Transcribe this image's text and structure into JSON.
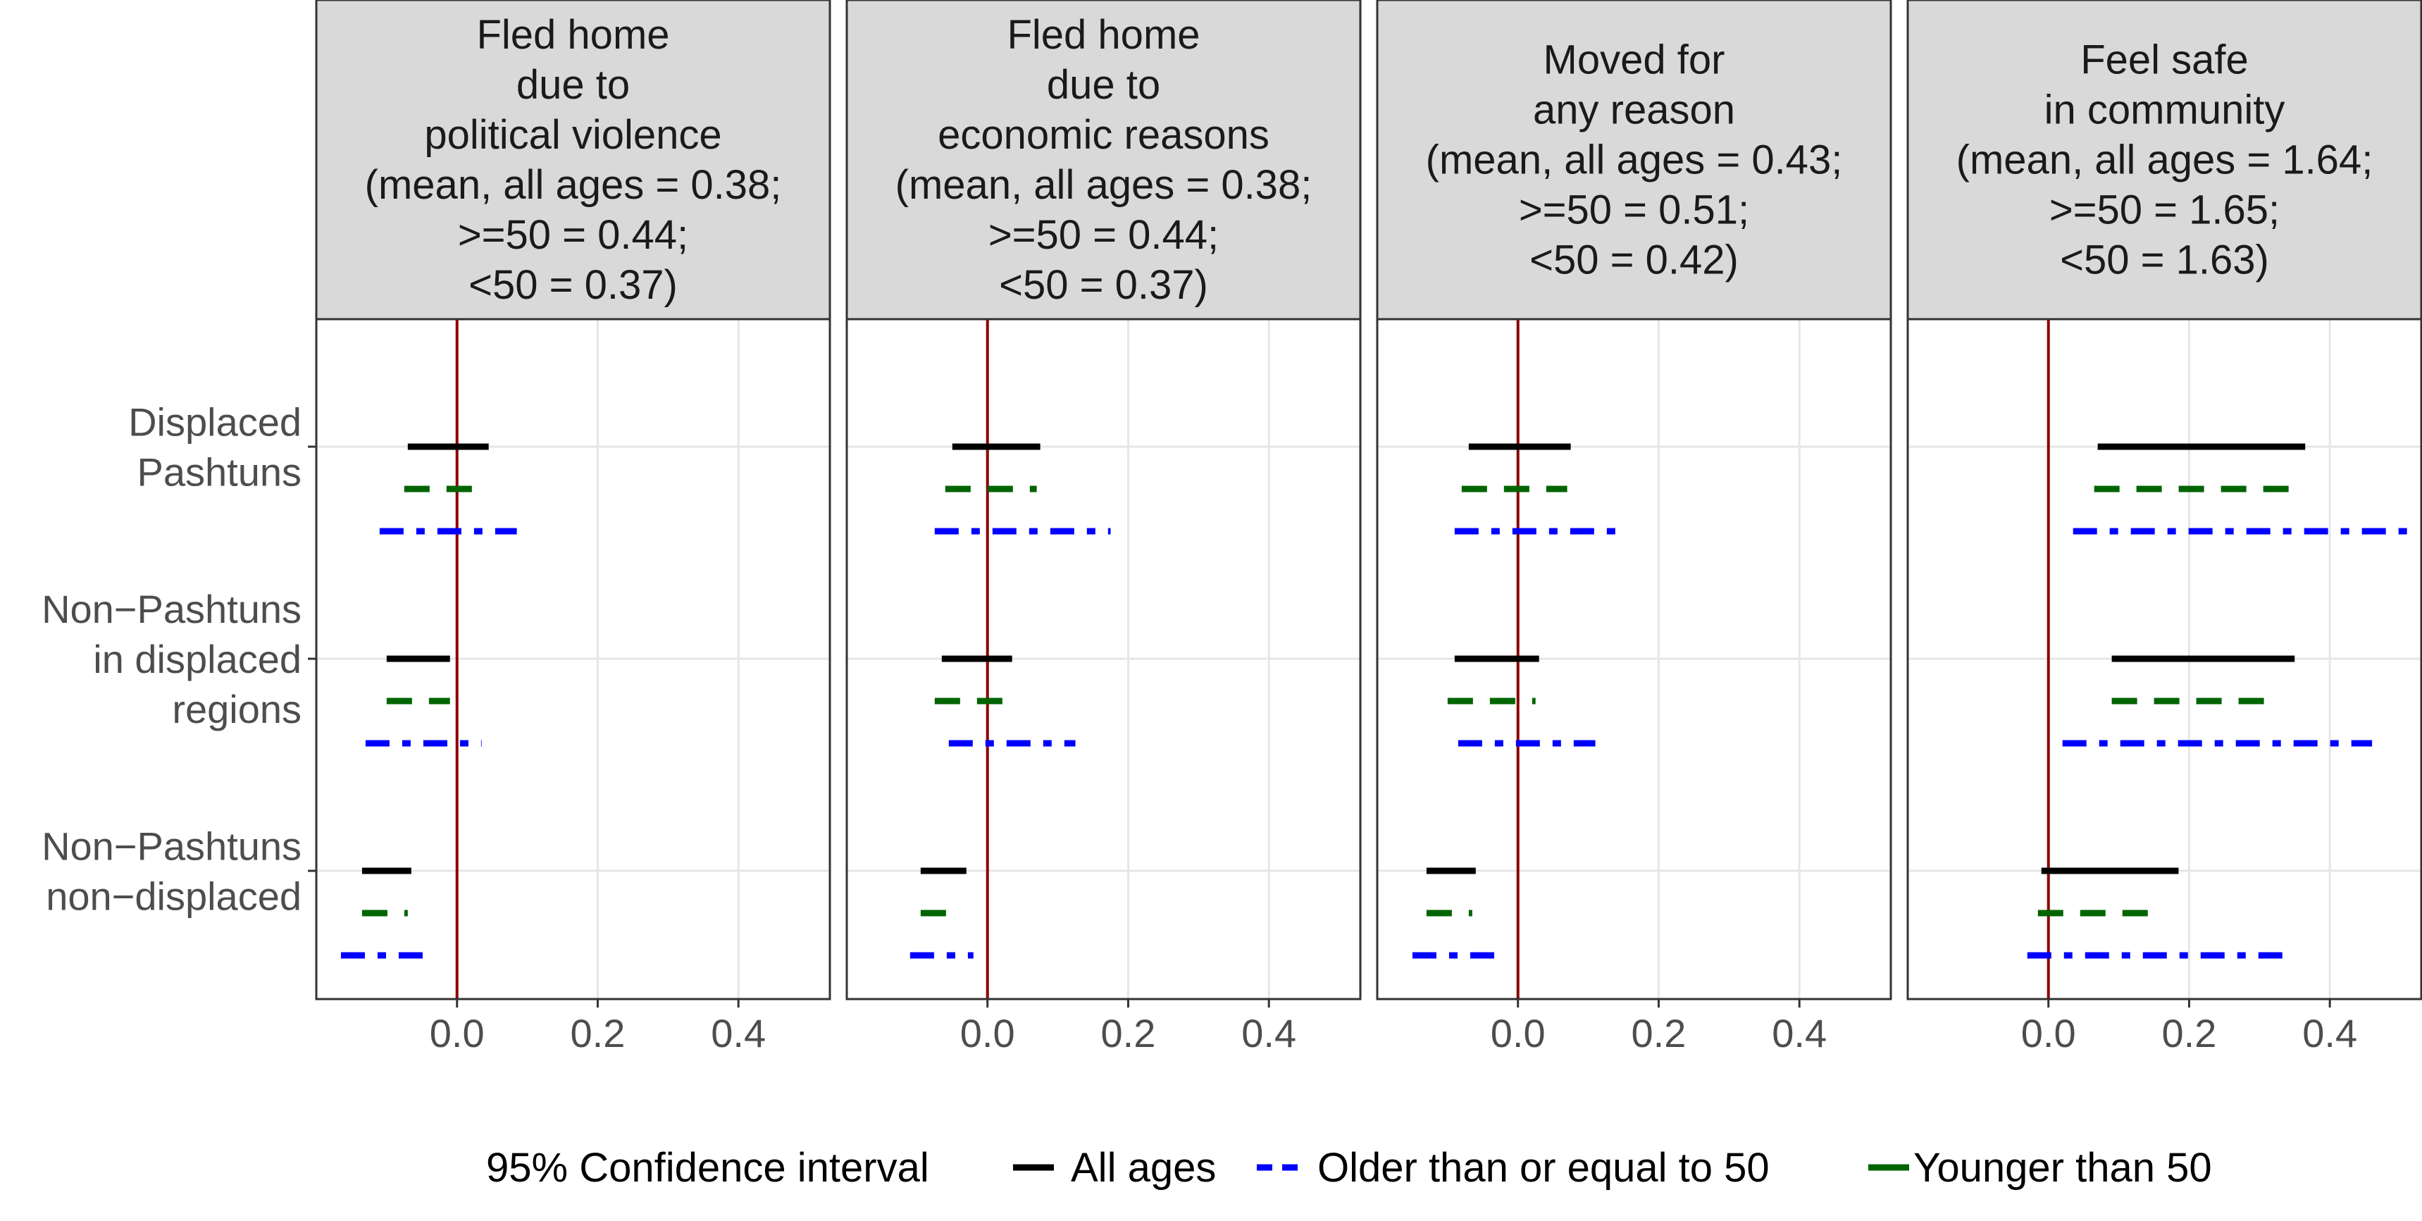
{
  "chart_data": {
    "type": "interval",
    "legend": {
      "title": "95% Confidence interval",
      "position": "bottom",
      "entries": [
        {
          "key": "all",
          "label": "All ages",
          "color": "#000000",
          "dash": "solid"
        },
        {
          "key": "older",
          "label": "Older than or equal to 50",
          "color": "#0000ff",
          "dash": "dashdot"
        },
        {
          "key": "younger",
          "label": "Younger than 50",
          "color": "#006400",
          "dash": "dashed"
        }
      ]
    },
    "rows": [
      {
        "label_lines": [
          "Displaced",
          "Pashtuns"
        ]
      },
      {
        "label_lines": [
          "Non−Pashtuns",
          "in displaced",
          "regions"
        ]
      },
      {
        "label_lines": [
          "Non−Pashtuns",
          "non−displaced"
        ]
      }
    ],
    "x_ticks": [
      "0.0",
      "0.2",
      "0.4"
    ],
    "x_tick_values": [
      0.0,
      0.2,
      0.4
    ],
    "xlim": [
      -0.2,
      0.53
    ],
    "reference_line": 0,
    "reference_color": "#8b0000",
    "panels": [
      {
        "title_lines": [
          "Fled home",
          "due to",
          "political violence",
          "(mean, all ages = 0.38;",
          ">=50 = 0.44;",
          "<50 = 0.37)"
        ],
        "intervals": [
          {
            "row": 0,
            "series": "all",
            "low": -0.07,
            "high": 0.045
          },
          {
            "row": 0,
            "series": "younger",
            "low": -0.075,
            "high": 0.045
          },
          {
            "row": 0,
            "series": "older",
            "low": -0.11,
            "high": 0.085
          },
          {
            "row": 1,
            "series": "all",
            "low": -0.1,
            "high": -0.01
          },
          {
            "row": 1,
            "series": "younger",
            "low": -0.1,
            "high": -0.01
          },
          {
            "row": 1,
            "series": "older",
            "low": -0.13,
            "high": 0.035
          },
          {
            "row": 2,
            "series": "all",
            "low": -0.135,
            "high": -0.065
          },
          {
            "row": 2,
            "series": "younger",
            "low": -0.135,
            "high": -0.07
          },
          {
            "row": 2,
            "series": "older",
            "low": -0.165,
            "high": -0.04
          }
        ]
      },
      {
        "title_lines": [
          "Fled home",
          "due to",
          "economic reasons",
          "(mean, all ages = 0.38;",
          ">=50 = 0.44;",
          "<50 = 0.37)"
        ],
        "intervals": [
          {
            "row": 0,
            "series": "all",
            "low": -0.05,
            "high": 0.075
          },
          {
            "row": 0,
            "series": "younger",
            "low": -0.06,
            "high": 0.07
          },
          {
            "row": 0,
            "series": "older",
            "low": -0.075,
            "high": 0.175
          },
          {
            "row": 1,
            "series": "all",
            "low": -0.065,
            "high": 0.035
          },
          {
            "row": 1,
            "series": "younger",
            "low": -0.075,
            "high": 0.03
          },
          {
            "row": 1,
            "series": "older",
            "low": -0.055,
            "high": 0.125
          },
          {
            "row": 2,
            "series": "all",
            "low": -0.095,
            "high": -0.03
          },
          {
            "row": 2,
            "series": "younger",
            "low": -0.095,
            "high": -0.035
          },
          {
            "row": 2,
            "series": "older",
            "low": -0.11,
            "high": -0.02
          }
        ]
      },
      {
        "title_lines": [
          "Moved for",
          "any reason",
          "(mean, all ages = 0.43;",
          ">=50 = 0.51;",
          "<50 = 0.42)"
        ],
        "intervals": [
          {
            "row": 0,
            "series": "all",
            "low": -0.07,
            "high": 0.075
          },
          {
            "row": 0,
            "series": "younger",
            "low": -0.08,
            "high": 0.07
          },
          {
            "row": 0,
            "series": "older",
            "low": -0.09,
            "high": 0.14
          },
          {
            "row": 1,
            "series": "all",
            "low": -0.09,
            "high": 0.03
          },
          {
            "row": 1,
            "series": "younger",
            "low": -0.1,
            "high": 0.025
          },
          {
            "row": 1,
            "series": "older",
            "low": -0.085,
            "high": 0.11
          },
          {
            "row": 2,
            "series": "all",
            "low": -0.13,
            "high": -0.06
          },
          {
            "row": 2,
            "series": "younger",
            "low": -0.13,
            "high": -0.065
          },
          {
            "row": 2,
            "series": "older",
            "low": -0.15,
            "high": -0.025
          }
        ]
      },
      {
        "title_lines": [
          "Feel safe",
          "in community",
          "(mean, all ages = 1.64;",
          ">=50 = 1.65;",
          "<50 = 1.63)"
        ],
        "intervals": [
          {
            "row": 0,
            "series": "all",
            "low": 0.07,
            "high": 0.365
          },
          {
            "row": 0,
            "series": "younger",
            "low": 0.065,
            "high": 0.36
          },
          {
            "row": 0,
            "series": "older",
            "low": 0.035,
            "high": 0.51
          },
          {
            "row": 1,
            "series": "all",
            "low": 0.09,
            "high": 0.35
          },
          {
            "row": 1,
            "series": "younger",
            "low": 0.09,
            "high": 0.33
          },
          {
            "row": 1,
            "series": "older",
            "low": 0.02,
            "high": 0.46
          },
          {
            "row": 2,
            "series": "all",
            "low": -0.01,
            "high": 0.185
          },
          {
            "row": 2,
            "series": "younger",
            "low": -0.015,
            "high": 0.165
          },
          {
            "row": 2,
            "series": "older",
            "low": -0.03,
            "high": 0.345
          }
        ]
      }
    ]
  }
}
